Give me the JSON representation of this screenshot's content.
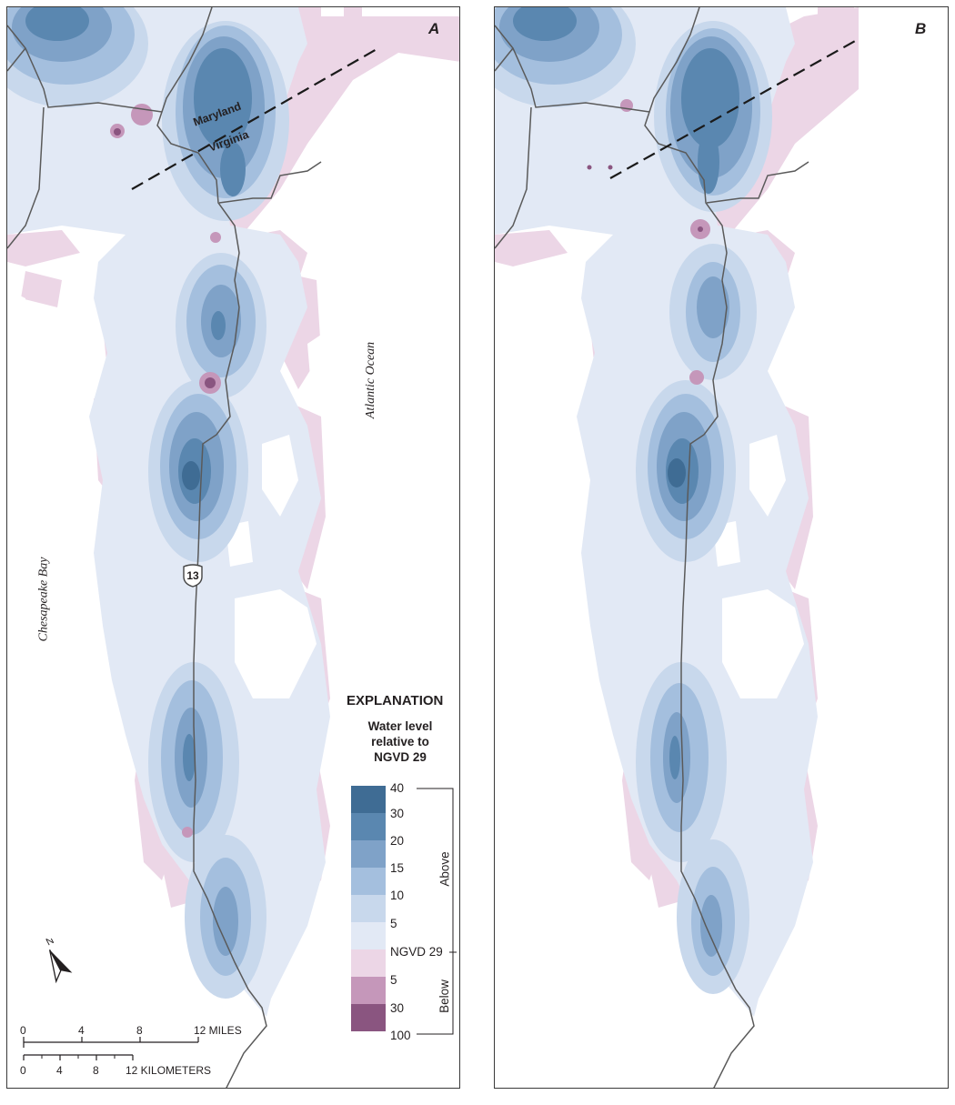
{
  "panels": [
    {
      "letter": "A"
    },
    {
      "letter": "B"
    }
  ],
  "labels": {
    "ocean": "Atlantic Ocean",
    "bay": "Chesapeake Bay",
    "state_north": "Maryland",
    "state_south": "Virginia",
    "route": "13"
  },
  "legend": {
    "title": "EXPLANATION",
    "subtitle": [
      "Water level",
      "relative to",
      "NGVD 29"
    ],
    "class_boundaries": [
      "40",
      "30",
      "20",
      "15",
      "10",
      "5",
      "NGVD 29",
      "5",
      "30",
      "100"
    ],
    "above_label": "Above",
    "below_label": "Below",
    "colors": [
      "#3f6c94",
      "#5a87b0",
      "#7fa2c8",
      "#a4bfde",
      "#c8d8ec",
      "#e2e9f5",
      "#ecd6e6",
      "#c597ba",
      "#8a5580"
    ]
  },
  "scale": {
    "miles": [
      "0",
      "4",
      "8",
      "12 MILES"
    ],
    "kilometers": [
      "0",
      "4",
      "8",
      "12 KILOMETERS"
    ]
  },
  "north_label": "N"
}
